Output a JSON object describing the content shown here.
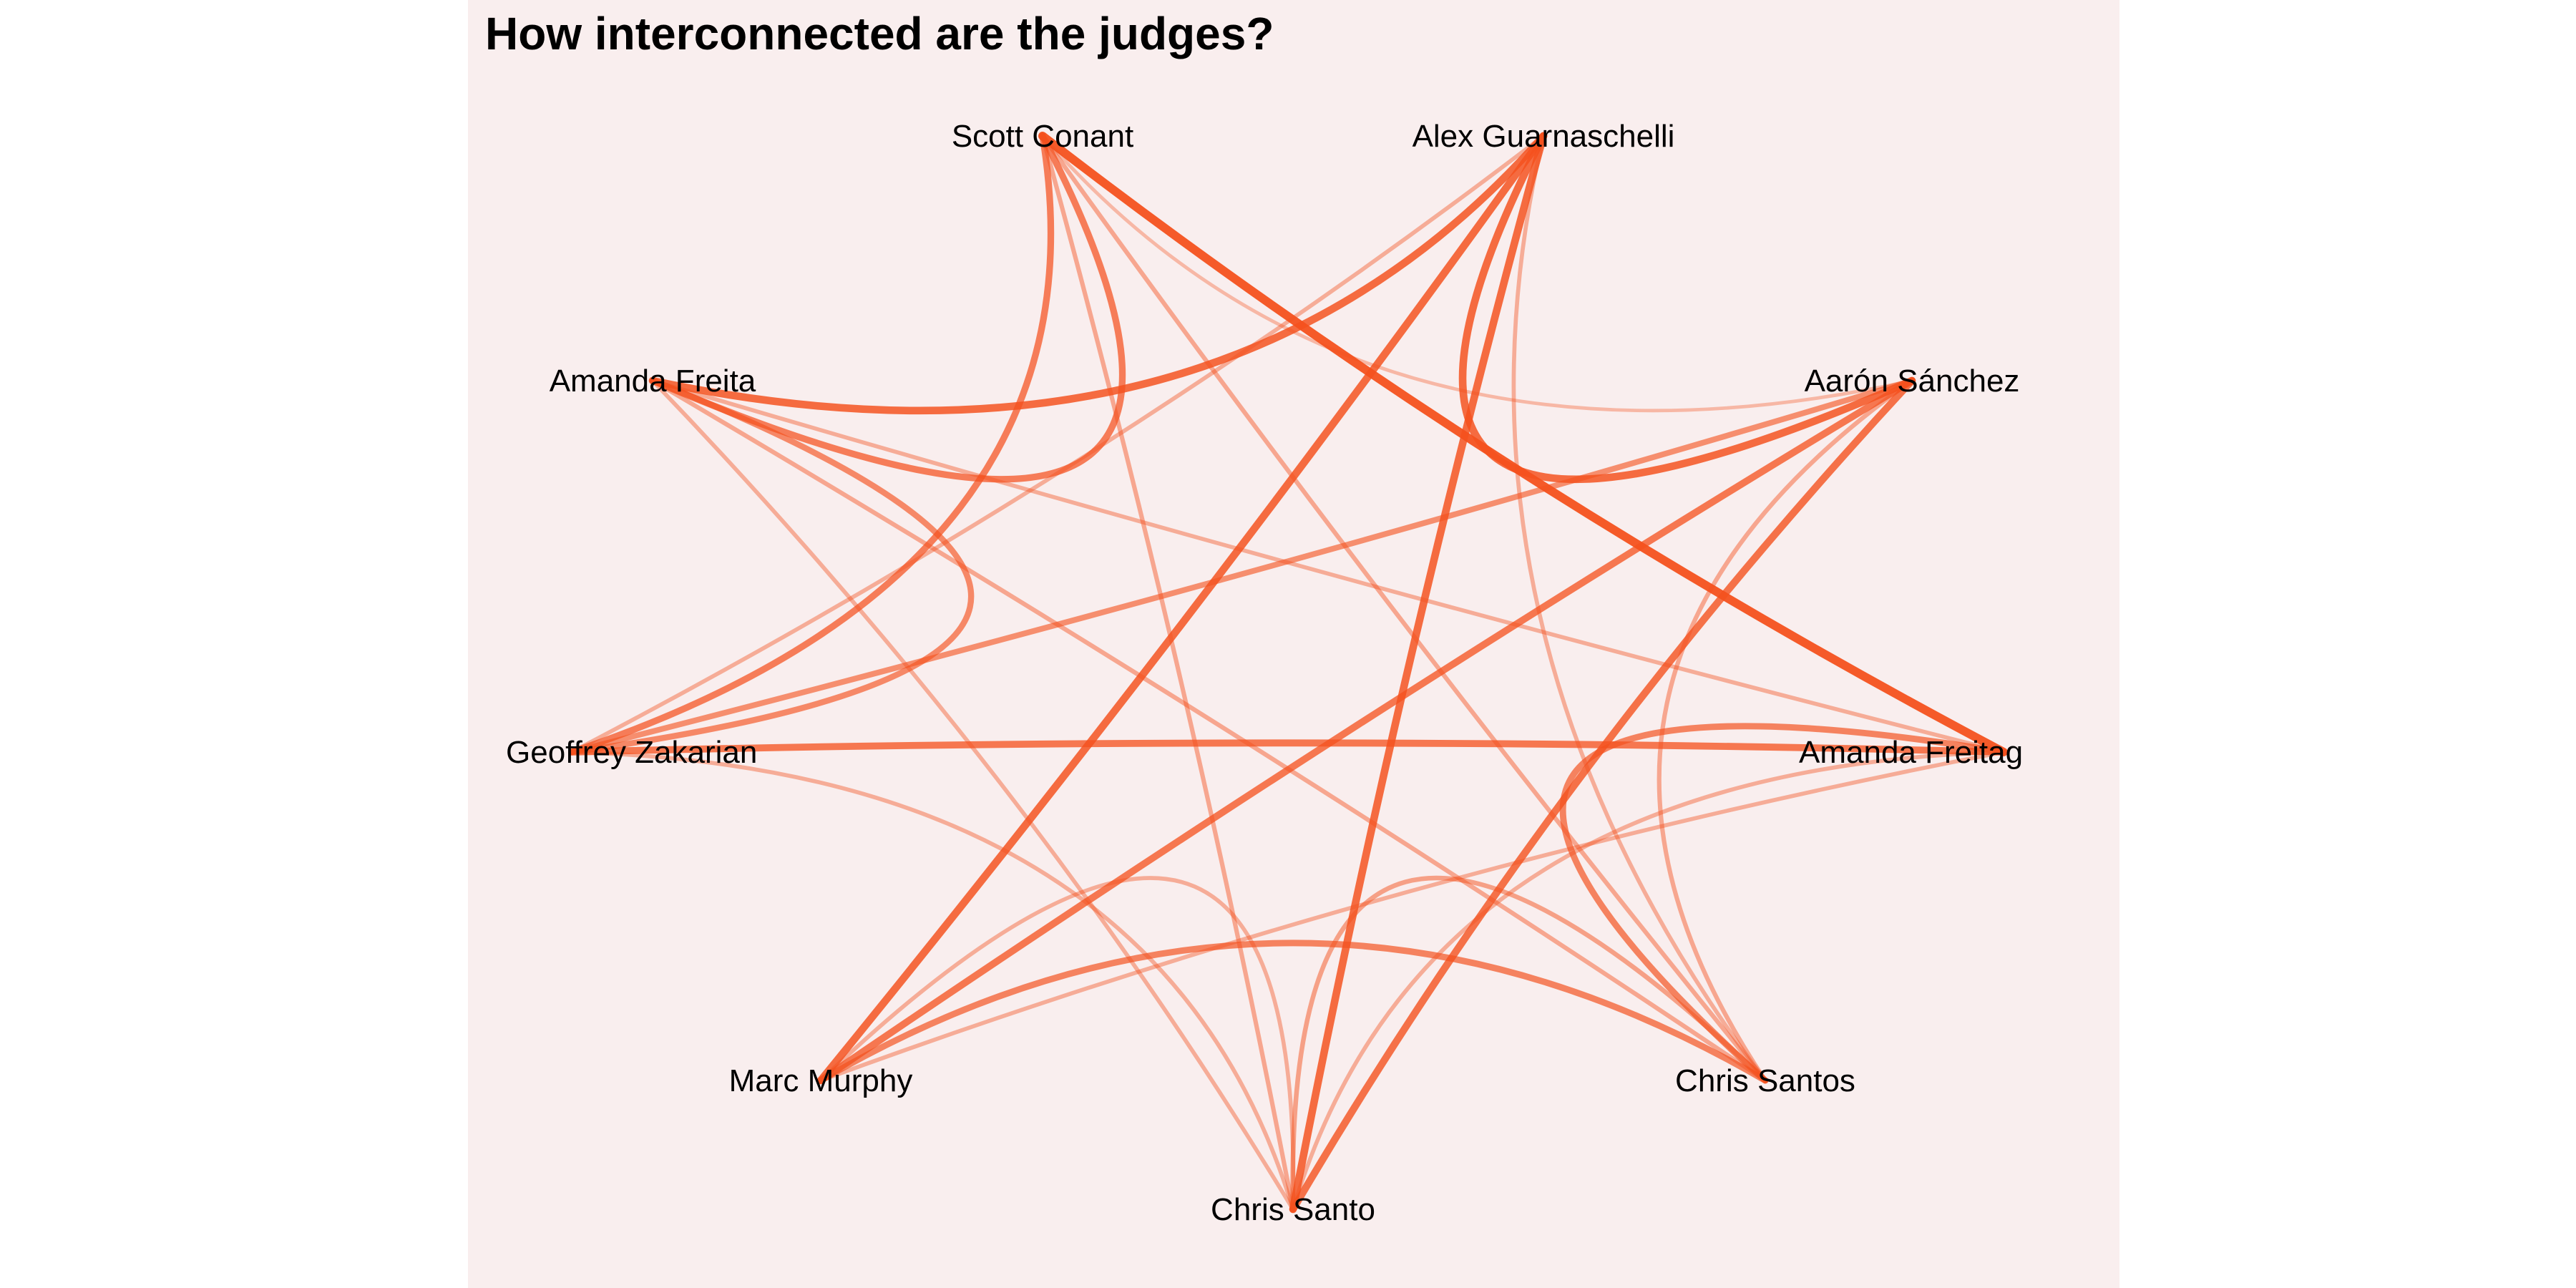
{
  "title": "How interconnected are the judges?",
  "edge_color": "#f4511e",
  "panel_background": "#f9eeee",
  "nodes": [
    {
      "id": "scott-conant",
      "label": "Scott Conant"
    },
    {
      "id": "alex-guarnaschelli",
      "label": "Alex Guarnaschelli"
    },
    {
      "id": "aaron-sanchez",
      "label": "Aarón Sánchez"
    },
    {
      "id": "amanda-freitag-right",
      "label": "Amanda Freitag"
    },
    {
      "id": "chris-santos-right",
      "label": "Chris Santos"
    },
    {
      "id": "chris-santo-bottom",
      "label": "Chris Santo"
    },
    {
      "id": "marc-murphy",
      "label": "Marc Murphy"
    },
    {
      "id": "geoffrey-zakarian",
      "label": "Geoffrey Zakarian"
    },
    {
      "id": "amanda-freita-left",
      "label": "Amanda Freita"
    }
  ],
  "edges": [
    {
      "from": "scott-conant",
      "to": "amanda-freitag-right",
      "weight": 1.0
    },
    {
      "from": "alex-guarnaschelli",
      "to": "aaron-sanchez",
      "weight": 0.85
    },
    {
      "from": "alex-guarnaschelli",
      "to": "amanda-freita-left",
      "weight": 0.85
    },
    {
      "from": "alex-guarnaschelli",
      "to": "marc-murphy",
      "weight": 0.85
    },
    {
      "from": "alex-guarnaschelli",
      "to": "chris-santo-bottom",
      "weight": 0.85
    },
    {
      "from": "aaron-sanchez",
      "to": "chris-santo-bottom",
      "weight": 0.8
    },
    {
      "from": "aaron-sanchez",
      "to": "marc-murphy",
      "weight": 0.75
    },
    {
      "from": "scott-conant",
      "to": "amanda-freita-left",
      "weight": 0.7
    },
    {
      "from": "scott-conant",
      "to": "geoffrey-zakarian",
      "weight": 0.7
    },
    {
      "from": "amanda-freita-left",
      "to": "geoffrey-zakarian",
      "weight": 0.6
    },
    {
      "from": "geoffrey-zakarian",
      "to": "amanda-freitag-right",
      "weight": 0.75
    },
    {
      "from": "amanda-freitag-right",
      "to": "chris-santos-right",
      "weight": 0.65
    },
    {
      "from": "marc-murphy",
      "to": "chris-santos-right",
      "weight": 0.65
    },
    {
      "from": "geoffrey-zakarian",
      "to": "aaron-sanchez",
      "weight": 0.55
    },
    {
      "from": "scott-conant",
      "to": "chris-santos-right",
      "weight": 0.35
    },
    {
      "from": "scott-conant",
      "to": "chris-santo-bottom",
      "weight": 0.35
    },
    {
      "from": "amanda-freita-left",
      "to": "chris-santos-right",
      "weight": 0.35
    },
    {
      "from": "amanda-freita-left",
      "to": "amanda-freitag-right",
      "weight": 0.3
    },
    {
      "from": "amanda-freita-left",
      "to": "chris-santo-bottom",
      "weight": 0.3
    },
    {
      "from": "alex-guarnaschelli",
      "to": "chris-santos-right",
      "weight": 0.3
    },
    {
      "from": "alex-guarnaschelli",
      "to": "geoffrey-zakarian",
      "weight": 0.3
    },
    {
      "from": "aaron-sanchez",
      "to": "chris-santos-right",
      "weight": 0.35
    },
    {
      "from": "geoffrey-zakarian",
      "to": "chris-santo-bottom",
      "weight": 0.3
    },
    {
      "from": "marc-murphy",
      "to": "chris-santo-bottom",
      "weight": 0.3
    },
    {
      "from": "marc-murphy",
      "to": "amanda-freitag-right",
      "weight": 0.3
    },
    {
      "from": "chris-santo-bottom",
      "to": "chris-santos-right",
      "weight": 0.4
    },
    {
      "from": "chris-santo-bottom",
      "to": "amanda-freitag-right",
      "weight": 0.3
    },
    {
      "from": "scott-conant",
      "to": "aaron-sanchez",
      "weight": 0.2
    }
  ]
}
